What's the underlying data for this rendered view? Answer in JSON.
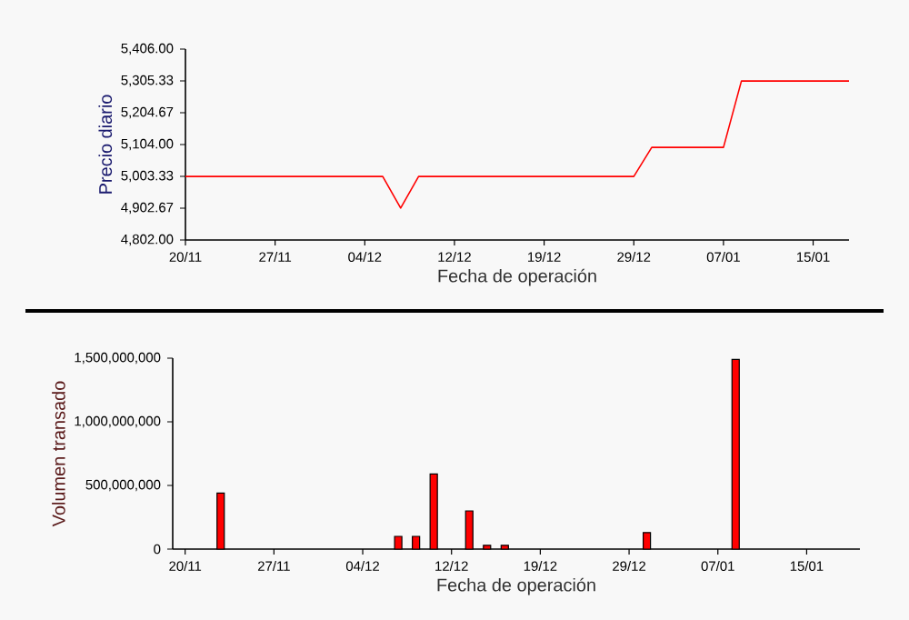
{
  "chart_data": [
    {
      "type": "line",
      "xlabel": "Fecha de operación",
      "ylabel": "Precio diario",
      "categories": [
        "20/11",
        null,
        null,
        null,
        null,
        "27/11",
        null,
        null,
        null,
        null,
        "04/12",
        null,
        null,
        null,
        null,
        "12/12",
        null,
        null,
        null,
        null,
        "19/12",
        null,
        null,
        null,
        null,
        "29/12",
        null,
        null,
        null,
        null,
        "07/01",
        null,
        null,
        null,
        null,
        "15/01",
        null,
        null
      ],
      "values": [
        5003,
        5003,
        5003,
        5003,
        5003,
        5003,
        5003,
        5003,
        5003,
        5003,
        5003,
        5003,
        4903,
        5003,
        5003,
        5003,
        5003,
        5003,
        5003,
        5003,
        5003,
        5003,
        5003,
        5003,
        5003,
        5003,
        5095,
        5095,
        5095,
        5095,
        5095,
        5305,
        5305,
        5305,
        5305,
        5305,
        5305,
        5305
      ],
      "color": "#ff0000",
      "ylim": [
        4802,
        5406
      ],
      "yticks": [
        {
          "value": 4802,
          "label": "4,802.00"
        },
        {
          "value": 4902.67,
          "label": "4,902.67"
        },
        {
          "value": 5003.33,
          "label": "5,003.33"
        },
        {
          "value": 5104,
          "label": "5,104.00"
        },
        {
          "value": 5204.67,
          "label": "5,204.67"
        },
        {
          "value": 5305.33,
          "label": "5,305.33"
        },
        {
          "value": 5406,
          "label": "5,406.00"
        }
      ]
    },
    {
      "type": "bar",
      "xlabel": "Fecha de operación",
      "ylabel": "Volumen transado",
      "categories": [
        "20/11",
        null,
        null,
        null,
        null,
        "27/11",
        null,
        null,
        null,
        null,
        "04/12",
        null,
        null,
        null,
        null,
        "12/12",
        null,
        null,
        null,
        null,
        "19/12",
        null,
        null,
        null,
        null,
        "29/12",
        null,
        null,
        null,
        null,
        "07/01",
        null,
        null,
        null,
        null,
        "15/01",
        null,
        null,
        null
      ],
      "values": [
        null,
        null,
        440000000,
        null,
        null,
        null,
        null,
        null,
        null,
        null,
        null,
        null,
        100000000,
        100000000,
        590000000,
        null,
        300000000,
        30000000,
        30000000,
        null,
        null,
        null,
        null,
        null,
        null,
        null,
        130000000,
        null,
        null,
        null,
        null,
        1490000000,
        null,
        null,
        null,
        null,
        null,
        null,
        null
      ],
      "color": "#ff0000",
      "ylim": [
        0,
        1500000000
      ],
      "yticks": [
        0,
        {
          "value": 500000000,
          "label": "500,000,000"
        },
        {
          "value": 1000000000,
          "label": "1,000,000,000"
        },
        {
          "value": 1500000000,
          "label": "1,500,000,000"
        }
      ]
    }
  ]
}
